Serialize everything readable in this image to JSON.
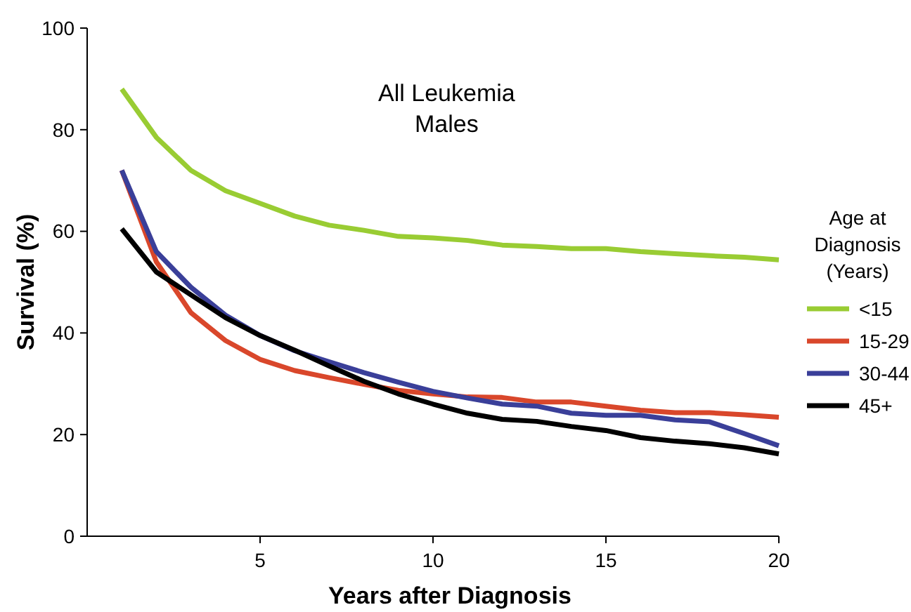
{
  "chart_data": {
    "type": "line",
    "title": "All Leukemia Males",
    "xlabel": "Years after Diagnosis",
    "ylabel": "Survival (%)",
    "legend_title": "Age at Diagnosis (Years)",
    "x": [
      1,
      2,
      3,
      4,
      5,
      6,
      7,
      8,
      9,
      10,
      11,
      12,
      13,
      14,
      15,
      16,
      17,
      18,
      19,
      20
    ],
    "series": [
      {
        "name": "<15",
        "color": "#99cc33",
        "values": [
          88,
          78.5,
          72,
          68,
          65.5,
          63,
          61.2,
          60.2,
          59,
          58.7,
          58.2,
          57.3,
          57,
          56.6,
          56.6,
          56,
          55.6,
          55.2,
          54.9,
          54.4
        ]
      },
      {
        "name": "15-29",
        "color": "#d9472b",
        "values": [
          72,
          54,
          44,
          38.5,
          34.8,
          32.6,
          31.2,
          29.9,
          28.7,
          28,
          27.4,
          27.3,
          26.4,
          26.4,
          25.6,
          24.8,
          24.3,
          24.3,
          23.9,
          23.4
        ]
      },
      {
        "name": "30-44",
        "color": "#3a3f99",
        "values": [
          72,
          56,
          49,
          43.5,
          39.5,
          36.5,
          34.3,
          32.2,
          30.3,
          28.5,
          27.2,
          26,
          25.6,
          24.2,
          23.8,
          23.8,
          22.9,
          22.5,
          20.2,
          17.8
        ]
      },
      {
        "name": "45+",
        "color": "#000000",
        "values": [
          60.5,
          52,
          47.5,
          43,
          39.5,
          36.6,
          33.5,
          30.5,
          28,
          26,
          24.2,
          23,
          22.6,
          21.6,
          20.8,
          19.4,
          18.7,
          18.2,
          17.4,
          16.2
        ]
      }
    ],
    "xlim": [
      0,
      20
    ],
    "xticks": [
      5,
      10,
      15,
      20
    ],
    "ylim": [
      0,
      100
    ],
    "yticks": [
      0,
      20,
      40,
      60,
      80,
      100
    ],
    "grid": false,
    "legend": "right",
    "marker": "none",
    "line_style": "solid"
  }
}
